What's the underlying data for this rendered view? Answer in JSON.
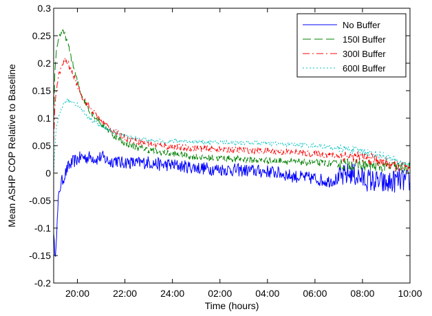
{
  "chart_data": {
    "type": "line",
    "title": "",
    "xlabel": "Time (hours)",
    "ylabel": "Mean ASHP COP Relative to Baseline",
    "xlim": [
      19.0,
      34.0
    ],
    "ylim": [
      -0.2,
      0.3
    ],
    "x_ticks": [
      {
        "value": 20,
        "label": "20:00"
      },
      {
        "value": 22,
        "label": "22:00"
      },
      {
        "value": 24,
        "label": "24:00"
      },
      {
        "value": 26,
        "label": "02:00"
      },
      {
        "value": 28,
        "label": "04:00"
      },
      {
        "value": 30,
        "label": "06:00"
      },
      {
        "value": 32,
        "label": "08:00"
      },
      {
        "value": 34,
        "label": "10:00"
      }
    ],
    "y_ticks": [
      {
        "value": -0.2,
        "label": "-0.2"
      },
      {
        "value": -0.15,
        "label": "-0.15"
      },
      {
        "value": -0.1,
        "label": "-0.1"
      },
      {
        "value": -0.05,
        "label": "-0.05"
      },
      {
        "value": 0,
        "label": "0"
      },
      {
        "value": 0.05,
        "label": "0.05"
      },
      {
        "value": 0.1,
        "label": "0.1"
      },
      {
        "value": 0.15,
        "label": "0.15"
      },
      {
        "value": 0.2,
        "label": "0.2"
      },
      {
        "value": 0.25,
        "label": "0.25"
      },
      {
        "value": 0.3,
        "label": "0.3"
      }
    ],
    "grid": false,
    "legend_position": "top-right",
    "series": [
      {
        "name": "No Buffer",
        "color": "#0000ff",
        "dash": "solid",
        "x": [
          19.0,
          19.05,
          19.1,
          19.15,
          19.2,
          19.25,
          19.3,
          19.4,
          19.5,
          19.6,
          19.8,
          20.0,
          20.2,
          20.4,
          20.6,
          20.8,
          21.0,
          21.2,
          21.4,
          21.6,
          21.8,
          22.0,
          22.5,
          23.0,
          23.5,
          24.0,
          24.5,
          25.0,
          25.5,
          26.0,
          26.5,
          27.0,
          27.5,
          28.0,
          28.5,
          29.0,
          29.5,
          30.0,
          30.5,
          31.0,
          31.5,
          32.0,
          32.5,
          33.0,
          33.5,
          34.0
        ],
        "y": [
          -0.1,
          -0.16,
          -0.12,
          -0.09,
          -0.05,
          -0.03,
          -0.02,
          -0.01,
          0.0,
          0.01,
          0.02,
          0.025,
          0.03,
          0.028,
          0.03,
          0.025,
          0.03,
          0.025,
          0.02,
          0.025,
          0.018,
          0.02,
          0.018,
          0.02,
          0.015,
          0.015,
          0.012,
          0.01,
          0.008,
          0.007,
          0.006,
          0.005,
          0.004,
          0.003,
          0.0,
          -0.005,
          -0.008,
          -0.01,
          -0.015,
          -0.01,
          0.0,
          -0.01,
          -0.015,
          -0.02,
          -0.012,
          -0.015
        ]
      },
      {
        "name": "150l Buffer",
        "color": "#008000",
        "dash": "12,5",
        "x": [
          19.0,
          19.05,
          19.1,
          19.2,
          19.3,
          19.4,
          19.5,
          19.6,
          19.8,
          20.0,
          20.2,
          20.5,
          21.0,
          21.5,
          22.0,
          22.5,
          23.0,
          23.5,
          24.0,
          24.5,
          25.0,
          25.5,
          26.0,
          27.0,
          28.0,
          29.0,
          30.0,
          31.0,
          32.0,
          32.5,
          33.0,
          33.5,
          34.0
        ],
        "y": [
          0.1,
          0.18,
          0.22,
          0.245,
          0.255,
          0.255,
          0.25,
          0.235,
          0.2,
          0.165,
          0.14,
          0.115,
          0.09,
          0.07,
          0.055,
          0.047,
          0.042,
          0.038,
          0.035,
          0.032,
          0.03,
          0.028,
          0.027,
          0.025,
          0.023,
          0.021,
          0.019,
          0.017,
          0.015,
          0.013,
          0.012,
          0.011,
          0.008
        ]
      },
      {
        "name": "300l Buffer",
        "color": "#ff0000",
        "dash": "10,4,2,4",
        "x": [
          19.0,
          19.05,
          19.1,
          19.2,
          19.3,
          19.4,
          19.5,
          19.6,
          19.8,
          20.0,
          20.2,
          20.5,
          21.0,
          21.5,
          22.0,
          22.5,
          23.0,
          23.5,
          24.0,
          24.5,
          25.0,
          25.5,
          26.0,
          27.0,
          28.0,
          29.0,
          30.0,
          31.0,
          32.0,
          32.5,
          33.0,
          33.5,
          34.0
        ],
        "y": [
          0.05,
          0.12,
          0.15,
          0.175,
          0.19,
          0.2,
          0.205,
          0.2,
          0.18,
          0.16,
          0.14,
          0.12,
          0.095,
          0.077,
          0.065,
          0.058,
          0.053,
          0.05,
          0.048,
          0.046,
          0.045,
          0.044,
          0.043,
          0.042,
          0.04,
          0.038,
          0.035,
          0.032,
          0.028,
          0.025,
          0.018,
          0.012,
          0.005
        ]
      },
      {
        "name": "600l Buffer",
        "color": "#00bfbf",
        "dash": "2,3",
        "x": [
          19.0,
          19.05,
          19.1,
          19.2,
          19.3,
          19.4,
          19.5,
          19.6,
          19.8,
          20.0,
          20.2,
          20.5,
          21.0,
          21.5,
          22.0,
          22.5,
          23.0,
          23.5,
          24.0,
          24.5,
          25.0,
          25.5,
          26.0,
          27.0,
          28.0,
          29.0,
          30.0,
          31.0,
          32.0,
          32.5,
          33.0,
          33.5,
          34.0
        ],
        "y": [
          0.0,
          0.04,
          0.075,
          0.1,
          0.115,
          0.125,
          0.13,
          0.132,
          0.13,
          0.125,
          0.115,
          0.1,
          0.085,
          0.075,
          0.068,
          0.063,
          0.06,
          0.058,
          0.058,
          0.058,
          0.057,
          0.056,
          0.056,
          0.055,
          0.054,
          0.052,
          0.05,
          0.045,
          0.04,
          0.035,
          0.03,
          0.02,
          0.015
        ]
      }
    ]
  }
}
